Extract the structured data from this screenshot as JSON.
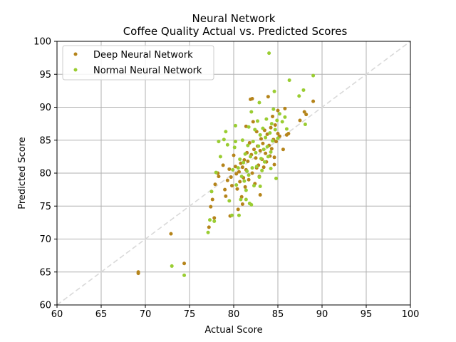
{
  "chart_data": {
    "type": "scatter",
    "title": "Neural Network",
    "subtitle": "Coffee Quality Actual vs. Predicted Scores",
    "xlabel": "Actual Score",
    "ylabel": "Predicted Score",
    "xlim": [
      60,
      100
    ],
    "ylim": [
      60,
      100
    ],
    "xticks": [
      "60",
      "65",
      "70",
      "75",
      "80",
      "85",
      "90",
      "95",
      "100"
    ],
    "yticks": [
      "60",
      "65",
      "70",
      "75",
      "80",
      "85",
      "90",
      "95",
      "100"
    ],
    "grid": true,
    "legend_position": "top-left",
    "reference_line": {
      "style": "dashed",
      "color": "#d9d9d9",
      "from": [
        60,
        60
      ],
      "to": [
        100,
        100
      ]
    },
    "series": [
      {
        "name": "Deep Neural Network",
        "color": "#b5841a",
        "points": [
          [
            69.2,
            65.0
          ],
          [
            69.2,
            64.8
          ],
          [
            72.9,
            70.8
          ],
          [
            74.4,
            66.3
          ],
          [
            77.2,
            71.8
          ],
          [
            77.4,
            74.9
          ],
          [
            77.6,
            76.0
          ],
          [
            77.8,
            73.2
          ],
          [
            77.9,
            78.3
          ],
          [
            78.2,
            80.0
          ],
          [
            78.3,
            79.5
          ],
          [
            78.8,
            81.2
          ],
          [
            79.0,
            77.5
          ],
          [
            79.1,
            76.5
          ],
          [
            79.3,
            78.9
          ],
          [
            79.5,
            80.6
          ],
          [
            79.7,
            79.4
          ],
          [
            79.8,
            78.1
          ],
          [
            80.0,
            82.7
          ],
          [
            80.2,
            81.0
          ],
          [
            80.3,
            79.9
          ],
          [
            80.4,
            77.6
          ],
          [
            80.6,
            80.2
          ],
          [
            80.7,
            78.7
          ],
          [
            80.8,
            81.5
          ],
          [
            80.9,
            76.4
          ],
          [
            81.0,
            80.9
          ],
          [
            81.1,
            79.3
          ],
          [
            81.2,
            82.0
          ],
          [
            81.3,
            77.9
          ],
          [
            81.4,
            80.5
          ],
          [
            81.5,
            83.1
          ],
          [
            81.6,
            81.8
          ],
          [
            81.7,
            79.0
          ],
          [
            81.8,
            84.6
          ],
          [
            81.9,
            91.2
          ],
          [
            82.1,
            91.3
          ],
          [
            82.0,
            82.8
          ],
          [
            82.1,
            80.0
          ],
          [
            82.2,
            87.8
          ],
          [
            82.3,
            83.6
          ],
          [
            82.4,
            78.4
          ],
          [
            82.5,
            82.3
          ],
          [
            82.6,
            80.8
          ],
          [
            82.7,
            84.1
          ],
          [
            82.8,
            81.2
          ],
          [
            82.9,
            79.5
          ],
          [
            83.0,
            83.4
          ],
          [
            83.1,
            85.2
          ],
          [
            83.2,
            82.1
          ],
          [
            83.3,
            84.5
          ],
          [
            83.4,
            80.9
          ],
          [
            83.5,
            86.5
          ],
          [
            83.6,
            83.0
          ],
          [
            83.7,
            81.7
          ],
          [
            83.8,
            85.9
          ],
          [
            83.9,
            91.6
          ],
          [
            84.0,
            84.2
          ],
          [
            84.1,
            82.6
          ],
          [
            84.2,
            86.9
          ],
          [
            84.3,
            83.7
          ],
          [
            84.4,
            88.6
          ],
          [
            84.5,
            85.1
          ],
          [
            84.6,
            82.4
          ],
          [
            84.7,
            87.3
          ],
          [
            84.8,
            84.8
          ],
          [
            85.0,
            86.0
          ],
          [
            85.2,
            85.6
          ],
          [
            85.6,
            83.6
          ],
          [
            85.8,
            89.8
          ],
          [
            86.0,
            85.8
          ],
          [
            86.2,
            86.0
          ],
          [
            87.5,
            88.0
          ],
          [
            88.0,
            89.3
          ],
          [
            88.2,
            88.9
          ],
          [
            89.0,
            90.9
          ],
          [
            80.5,
            74.5
          ],
          [
            81.0,
            75.3
          ],
          [
            79.6,
            73.5
          ],
          [
            83.0,
            76.7
          ],
          [
            84.6,
            81.3
          ],
          [
            85.0,
            89.5
          ],
          [
            82.6,
            86.3
          ],
          [
            81.4,
            87.1
          ]
        ]
      },
      {
        "name": "Normal Neural Network",
        "color": "#9acd32",
        "points": [
          [
            73.0,
            65.9
          ],
          [
            74.4,
            64.5
          ],
          [
            77.1,
            71.0
          ],
          [
            77.3,
            72.9
          ],
          [
            77.8,
            72.7
          ],
          [
            77.5,
            77.2
          ],
          [
            78.0,
            80.1
          ],
          [
            78.3,
            84.8
          ],
          [
            78.5,
            82.5
          ],
          [
            78.9,
            85.1
          ],
          [
            79.1,
            86.3
          ],
          [
            79.3,
            84.3
          ],
          [
            79.5,
            75.8
          ],
          [
            79.8,
            73.6
          ],
          [
            79.9,
            80.5
          ],
          [
            80.1,
            83.9
          ],
          [
            80.2,
            84.8
          ],
          [
            80.3,
            78.2
          ],
          [
            80.5,
            80.8
          ],
          [
            80.6,
            73.6
          ],
          [
            80.7,
            82.1
          ],
          [
            80.8,
            76.0
          ],
          [
            80.9,
            79.5
          ],
          [
            81.0,
            85.0
          ],
          [
            81.1,
            81.6
          ],
          [
            81.2,
            78.8
          ],
          [
            81.3,
            82.9
          ],
          [
            81.4,
            77.4
          ],
          [
            81.5,
            80.3
          ],
          [
            81.6,
            84.2
          ],
          [
            81.7,
            79.7
          ],
          [
            81.8,
            75.4
          ],
          [
            81.9,
            82.5
          ],
          [
            82.0,
            89.3
          ],
          [
            82.1,
            80.8
          ],
          [
            82.2,
            84.8
          ],
          [
            82.3,
            78.1
          ],
          [
            82.4,
            86.6
          ],
          [
            82.5,
            83.1
          ],
          [
            82.6,
            81.0
          ],
          [
            82.7,
            87.9
          ],
          [
            82.8,
            84.1
          ],
          [
            82.9,
            79.4
          ],
          [
            83.0,
            85.8
          ],
          [
            83.1,
            82.2
          ],
          [
            83.2,
            80.4
          ],
          [
            83.3,
            86.8
          ],
          [
            83.4,
            83.6
          ],
          [
            83.5,
            81.7
          ],
          [
            83.6,
            85.4
          ],
          [
            83.7,
            88.2
          ],
          [
            83.8,
            84.0
          ],
          [
            83.9,
            82.5
          ],
          [
            84.0,
            98.2
          ],
          [
            84.1,
            86.1
          ],
          [
            84.2,
            83.2
          ],
          [
            84.3,
            87.5
          ],
          [
            84.4,
            84.9
          ],
          [
            84.5,
            89.7
          ],
          [
            84.6,
            92.4
          ],
          [
            84.7,
            86.6
          ],
          [
            84.8,
            79.2
          ],
          [
            84.9,
            88.0
          ],
          [
            85.0,
            85.3
          ],
          [
            85.5,
            87.8
          ],
          [
            85.8,
            88.5
          ],
          [
            86.0,
            86.7
          ],
          [
            86.3,
            94.1
          ],
          [
            87.4,
            91.7
          ],
          [
            87.9,
            92.6
          ],
          [
            88.1,
            87.4
          ],
          [
            89.0,
            94.8
          ],
          [
            82.0,
            75.2
          ],
          [
            81.4,
            76.0
          ],
          [
            80.2,
            87.2
          ],
          [
            83.0,
            78.0
          ],
          [
            84.2,
            80.7
          ],
          [
            85.2,
            89.0
          ],
          [
            82.9,
            90.7
          ],
          [
            81.7,
            87.0
          ]
        ]
      }
    ]
  }
}
